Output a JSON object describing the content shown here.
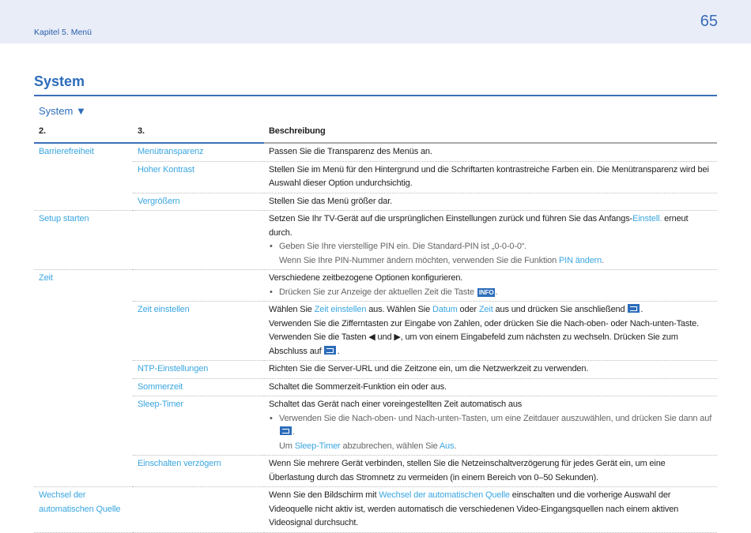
{
  "header": {
    "chapter": "Kapitel 5. Menü",
    "page_number": "65"
  },
  "title": "System",
  "subtitle": "System ▼",
  "table": {
    "headers": [
      "2.",
      "3.",
      "Beschreibung"
    ],
    "rows": [
      {
        "c1": "Barrierefreiheit",
        "c2": "Menütransparenz",
        "desc": [
          {
            "p": [
              [
                "Passen Sie die Transparenz des Menüs an.",
                "t"
              ]
            ]
          }
        ]
      },
      {
        "c1": "",
        "c2": "Hoher Kontrast",
        "desc": [
          {
            "p": [
              [
                "Stellen Sie im Menü für den Hintergrund und die Schriftarten kontrastreiche Farben ein. Die Menütransparenz wird bei Auswahl dieser Option undurchsichtig.",
                "t"
              ]
            ]
          }
        ]
      },
      {
        "c1": "",
        "c2": "Vergrößern",
        "desc": [
          {
            "p": [
              [
                "Stellen Sie das Menü größer dar.",
                "t"
              ]
            ]
          }
        ],
        "end": true
      },
      {
        "c1": "Setup starten",
        "c2": "",
        "desc": [
          {
            "p": [
              [
                "Setzen Sie Ihr TV-Gerät auf die ursprünglichen Einstellungen zurück und führen Sie das Anfangs-",
                "t"
              ],
              [
                "Einstell.",
                "l"
              ],
              [
                " erneut durch.",
                "t"
              ]
            ]
          },
          {
            "b": [
              [
                "Geben Sie Ihre vierstellige PIN ein. Die Standard-PIN ist „0-0-0-0“.",
                "t"
              ]
            ],
            "b2": [
              [
                "Wenn Sie Ihre PIN-Nummer ändern möchten, verwenden Sie die Funktion ",
                "t"
              ],
              [
                "PIN ändern",
                "l"
              ],
              [
                ".",
                "t"
              ]
            ]
          }
        ]
      },
      {
        "c1": "Zeit",
        "c2": "",
        "desc": [
          {
            "p": [
              [
                "Verschiedene zeitbezogene Optionen konfigurieren.",
                "t"
              ]
            ]
          },
          {
            "b": [
              [
                "Drücken Sie zur Anzeige der aktuellen Zeit die Taste ",
                "t"
              ],
              [
                "INFO",
                "i"
              ],
              [
                ".",
                "t"
              ]
            ]
          }
        ],
        "noc1": true
      },
      {
        "c1": "",
        "c2": "Zeit einstellen",
        "desc": [
          {
            "p": [
              [
                "Wählen Sie ",
                "t"
              ],
              [
                "Zeit einstellen",
                "l"
              ],
              [
                " aus. Wählen Sie ",
                "t"
              ],
              [
                "Datum",
                "l"
              ],
              [
                " oder ",
                "t"
              ],
              [
                "Zeit",
                "l"
              ],
              [
                " aus und drücken Sie anschließend ",
                "t"
              ],
              [
                "enter-key",
                "k"
              ],
              [
                ".",
                "t"
              ]
            ]
          },
          {
            "p": [
              [
                "Verwenden Sie die Zifferntasten zur Eingabe von Zahlen, oder drücken Sie die Nach-oben- oder Nach-unten-Taste.",
                "t"
              ]
            ]
          },
          {
            "p": [
              [
                "Verwenden Sie die Tasten ◀ und ▶, um von einem Eingabefeld zum nächsten zu wechseln. Drücken Sie zum Abschluss auf ",
                "t"
              ],
              [
                "enter-key",
                "k"
              ],
              [
                ".",
                "t"
              ]
            ]
          }
        ]
      },
      {
        "c1": "",
        "c2": "NTP-Einstellungen",
        "desc": [
          {
            "p": [
              [
                "Richten Sie die Server-URL und die Zeitzone ein, um die Netzwerkzeit zu verwenden.",
                "t"
              ]
            ]
          }
        ]
      },
      {
        "c1": "",
        "c2": "Sommerzeit",
        "desc": [
          {
            "p": [
              [
                "Schaltet die Sommerzeit-Funktion ein oder aus.",
                "t"
              ]
            ]
          }
        ]
      },
      {
        "c1": "",
        "c2": "Sleep-Timer",
        "desc": [
          {
            "p": [
              [
                "Schaltet das Gerät nach einer voreingestellten Zeit automatisch aus",
                "t"
              ]
            ]
          },
          {
            "b": [
              [
                "Verwenden Sie die Nach-oben- und Nach-unten-Tasten, um eine Zeitdauer auszuwählen, und drücken Sie dann auf ",
                "t"
              ],
              [
                "enter-key",
                "k"
              ],
              [
                ".",
                "t"
              ]
            ],
            "b2": [
              [
                "Um ",
                "t"
              ],
              [
                "Sleep-Timer",
                "l"
              ],
              [
                " abzubrechen, wählen Sie ",
                "t"
              ],
              [
                "Aus",
                "l"
              ],
              [
                ".",
                "t"
              ]
            ]
          }
        ]
      },
      {
        "c1": "",
        "c2": "Einschalten verzögern",
        "desc": [
          {
            "p": [
              [
                "Wenn Sie mehrere Gerät verbinden, stellen Sie die Netzeinschaltverzögerung für jedes Gerät ein, um eine Überlastung durch das Stromnetz zu vermeiden (in einem Bereich von 0–50 Sekunden).",
                "t"
              ]
            ]
          }
        ],
        "end": true
      },
      {
        "c1": "Wechsel der automatischen Quelle",
        "c2": "",
        "desc": [
          {
            "p": [
              [
                "Wenn Sie den Bildschirm mit ",
                "t"
              ],
              [
                "Wechsel der automatischen Quelle",
                "l"
              ],
              [
                " einschalten und die vorherige Auswahl der Videoquelle nicht aktiv ist, werden automatisch die verschiedenen Video-Eingangsquellen nach einem aktiven Videosignal durchsucht.",
                "t"
              ]
            ]
          }
        ],
        "end": true
      }
    ]
  }
}
